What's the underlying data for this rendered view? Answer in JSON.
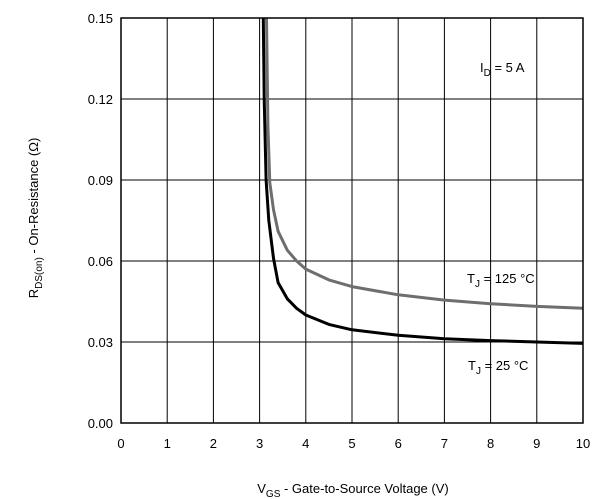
{
  "chart_data": {
    "type": "line",
    "xlim": [
      0,
      10
    ],
    "ylim": [
      0,
      0.15
    ],
    "x_ticks": [
      "0",
      "1",
      "2",
      "3",
      "4",
      "5",
      "6",
      "7",
      "8",
      "9",
      "10"
    ],
    "y_ticks": [
      "0.00",
      "0.03",
      "0.06",
      "0.09",
      "0.12",
      "0.15"
    ],
    "grid": true,
    "xlabel": {
      "main": "V",
      "sub": "GS",
      "rest": " - Gate-to-Source Voltage (V)"
    },
    "ylabel": {
      "main": "R",
      "sub": "DS(on)",
      "rest": " - On-Resistance (Ω)"
    },
    "annotations": [
      {
        "main": "I",
        "sub": "D",
        "rest": " = 5 A"
      }
    ],
    "series": [
      {
        "name": {
          "main": "T",
          "sub": "J",
          "rest": " = 125 °C"
        },
        "color": "#6e6e6e",
        "points": [
          [
            3.15,
            0.15
          ],
          [
            3.18,
            0.11
          ],
          [
            3.22,
            0.089
          ],
          [
            3.3,
            0.079
          ],
          [
            3.4,
            0.071
          ],
          [
            3.6,
            0.064
          ],
          [
            3.8,
            0.06
          ],
          [
            4.0,
            0.057
          ],
          [
            4.5,
            0.053
          ],
          [
            5.0,
            0.0505
          ],
          [
            6.0,
            0.0475
          ],
          [
            7.0,
            0.0455
          ],
          [
            8.0,
            0.0442
          ],
          [
            9.0,
            0.0432
          ],
          [
            10.0,
            0.0425
          ]
        ]
      },
      {
        "name": {
          "main": "T",
          "sub": "J",
          "rest": " = 25 °C"
        },
        "color": "#000000",
        "points": [
          [
            3.08,
            0.15
          ],
          [
            3.1,
            0.12
          ],
          [
            3.14,
            0.09
          ],
          [
            3.2,
            0.075
          ],
          [
            3.3,
            0.061
          ],
          [
            3.4,
            0.052
          ],
          [
            3.6,
            0.046
          ],
          [
            3.8,
            0.0425
          ],
          [
            4.0,
            0.04
          ],
          [
            4.5,
            0.0365
          ],
          [
            5.0,
            0.0345
          ],
          [
            6.0,
            0.0325
          ],
          [
            7.0,
            0.0312
          ],
          [
            8.0,
            0.0305
          ],
          [
            9.0,
            0.03
          ],
          [
            10.0,
            0.0295
          ]
        ]
      }
    ]
  }
}
